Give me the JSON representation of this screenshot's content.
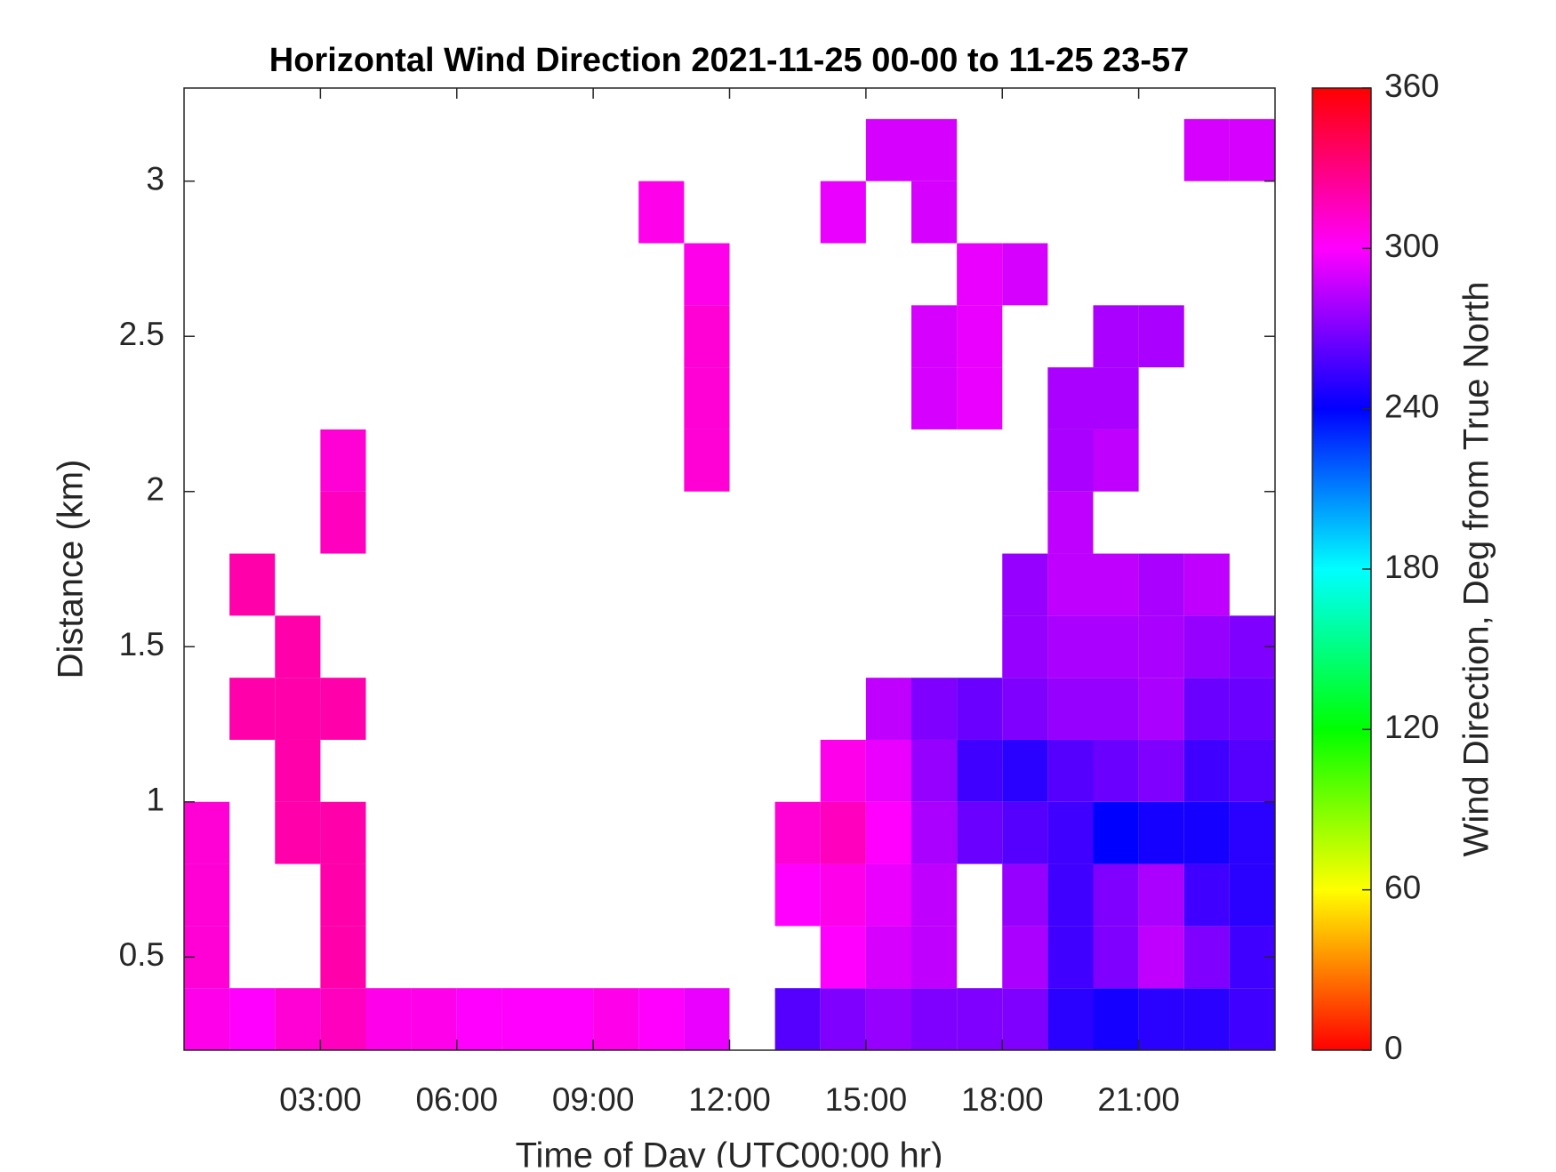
{
  "chart_data": {
    "type": "heatmap",
    "title": "Horizontal Wind Direction 2021-11-25 00-00 to 11-25 23-57",
    "x_label": "Time of Day (UTC00:00 hr)",
    "y_label": "Distance (km)",
    "colorbar_label": "Wind Direction, Deg from True North",
    "xlim": [
      0,
      24
    ],
    "xticks": [
      {
        "value": 3,
        "label": "03:00"
      },
      {
        "value": 6,
        "label": "06:00"
      },
      {
        "value": 9,
        "label": "09:00"
      },
      {
        "value": 12,
        "label": "12:00"
      },
      {
        "value": 15,
        "label": "15:00"
      },
      {
        "value": 18,
        "label": "18:00"
      },
      {
        "value": 21,
        "label": "21:00"
      }
    ],
    "ylim": [
      0.2,
      3.3
    ],
    "yticks": [
      0.5,
      1,
      1.5,
      2,
      2.5,
      3
    ],
    "clim": [
      0,
      360
    ],
    "cticks": [
      0,
      60,
      120,
      180,
      240,
      300,
      360
    ],
    "x": [
      0.5,
      1.5,
      2.5,
      3.5,
      4.5,
      5.5,
      6.5,
      7.5,
      8.5,
      9.5,
      10.5,
      11.5,
      12.5,
      13.5,
      14.5,
      15.5,
      16.5,
      17.5,
      18.5,
      19.5,
      20.5,
      21.5,
      22.5,
      23.5
    ],
    "y": [
      0.3,
      0.5,
      0.7,
      0.9,
      1.1,
      1.3,
      1.5,
      1.7,
      1.9,
      2.1,
      2.3,
      2.5,
      2.7,
      2.9,
      3.1
    ],
    "values": [
      [
        305,
        300,
        310,
        315,
        305,
        305,
        300,
        300,
        300,
        305,
        300,
        295,
        null,
        260,
        270,
        275,
        270,
        270,
        270,
        250,
        245,
        250,
        250,
        255
      ],
      [
        310,
        null,
        null,
        320,
        null,
        null,
        null,
        null,
        null,
        null,
        null,
        null,
        null,
        null,
        300,
        290,
        285,
        null,
        280,
        255,
        270,
        285,
        270,
        255
      ],
      [
        310,
        null,
        null,
        320,
        null,
        null,
        null,
        null,
        null,
        null,
        null,
        null,
        null,
        300,
        305,
        295,
        285,
        null,
        275,
        255,
        270,
        280,
        255,
        250
      ],
      [
        310,
        null,
        320,
        320,
        null,
        null,
        null,
        null,
        null,
        null,
        null,
        null,
        null,
        310,
        315,
        300,
        280,
        265,
        260,
        255,
        240,
        245,
        245,
        250
      ],
      [
        null,
        null,
        320,
        null,
        null,
        null,
        null,
        null,
        null,
        null,
        null,
        null,
        null,
        null,
        305,
        295,
        275,
        255,
        250,
        260,
        265,
        270,
        255,
        260
      ],
      [
        null,
        320,
        320,
        320,
        null,
        null,
        null,
        null,
        null,
        null,
        null,
        null,
        null,
        null,
        null,
        285,
        270,
        265,
        270,
        275,
        275,
        280,
        265,
        265
      ],
      [
        null,
        null,
        320,
        null,
        null,
        null,
        null,
        null,
        null,
        null,
        null,
        null,
        null,
        null,
        null,
        null,
        null,
        null,
        275,
        280,
        280,
        280,
        275,
        270
      ],
      [
        null,
        320,
        null,
        null,
        null,
        null,
        null,
        null,
        null,
        null,
        null,
        null,
        null,
        null,
        null,
        null,
        null,
        null,
        275,
        285,
        285,
        280,
        285,
        null
      ],
      [
        null,
        null,
        null,
        315,
        null,
        null,
        null,
        null,
        null,
        null,
        null,
        null,
        null,
        null,
        null,
        null,
        null,
        null,
        null,
        285,
        null,
        null,
        null,
        null
      ],
      [
        null,
        null,
        null,
        310,
        null,
        null,
        null,
        null,
        null,
        null,
        null,
        310,
        null,
        null,
        null,
        null,
        null,
        null,
        null,
        280,
        285,
        null,
        null,
        null
      ],
      [
        null,
        null,
        null,
        null,
        null,
        null,
        null,
        null,
        null,
        null,
        null,
        310,
        null,
        null,
        null,
        null,
        290,
        295,
        null,
        280,
        280,
        null,
        null,
        null
      ],
      [
        null,
        null,
        null,
        null,
        null,
        null,
        null,
        null,
        null,
        null,
        null,
        310,
        null,
        null,
        null,
        null,
        290,
        295,
        null,
        null,
        280,
        280,
        null,
        null
      ],
      [
        null,
        null,
        null,
        null,
        null,
        null,
        null,
        null,
        null,
        null,
        null,
        305,
        null,
        null,
        null,
        null,
        null,
        295,
        290,
        null,
        null,
        null,
        null,
        null
      ],
      [
        null,
        null,
        null,
        null,
        null,
        null,
        null,
        null,
        null,
        null,
        305,
        null,
        null,
        null,
        295,
        null,
        290,
        null,
        null,
        null,
        null,
        null,
        null,
        null
      ],
      [
        null,
        null,
        null,
        null,
        null,
        null,
        null,
        null,
        null,
        null,
        null,
        null,
        null,
        null,
        null,
        290,
        290,
        null,
        null,
        null,
        null,
        null,
        290,
        290
      ]
    ]
  }
}
